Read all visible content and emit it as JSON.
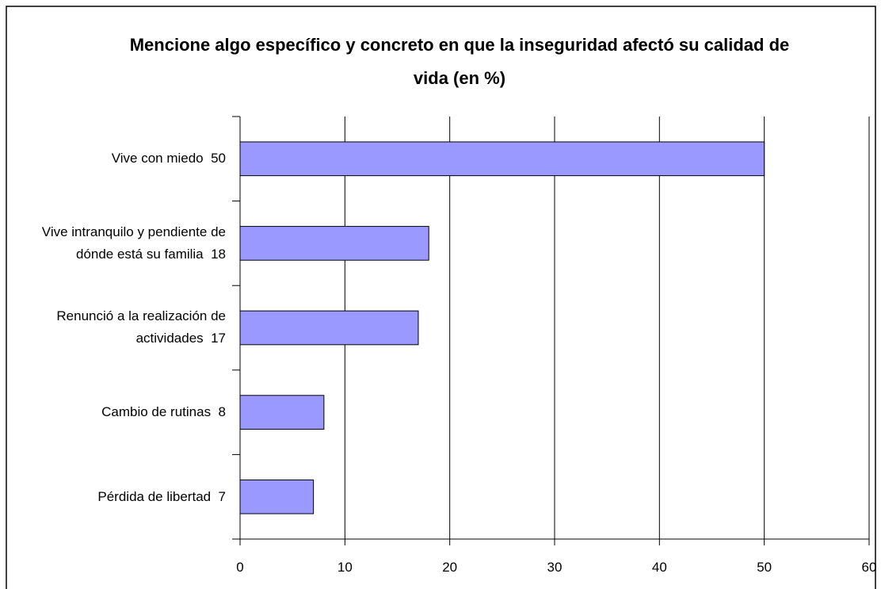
{
  "chart_data": {
    "type": "bar",
    "orientation": "horizontal",
    "title": "Mencione algo específico y concreto en que la inseguridad afectó su calidad de vida (en %)",
    "categories": [
      "Vive con miedo  50",
      "Vive intranquilo y pendiente de dónde está su familia  18",
      "Renunció a la realización de actividades  17",
      "Cambio de rutinas  8",
      "Pérdida de libertad  7"
    ],
    "values": [
      50,
      18,
      17,
      8,
      7
    ],
    "color": "#9999ff",
    "xlim": [
      0,
      60
    ],
    "xticks": [
      0,
      10,
      20,
      30,
      40,
      50,
      60
    ],
    "grid": true
  }
}
